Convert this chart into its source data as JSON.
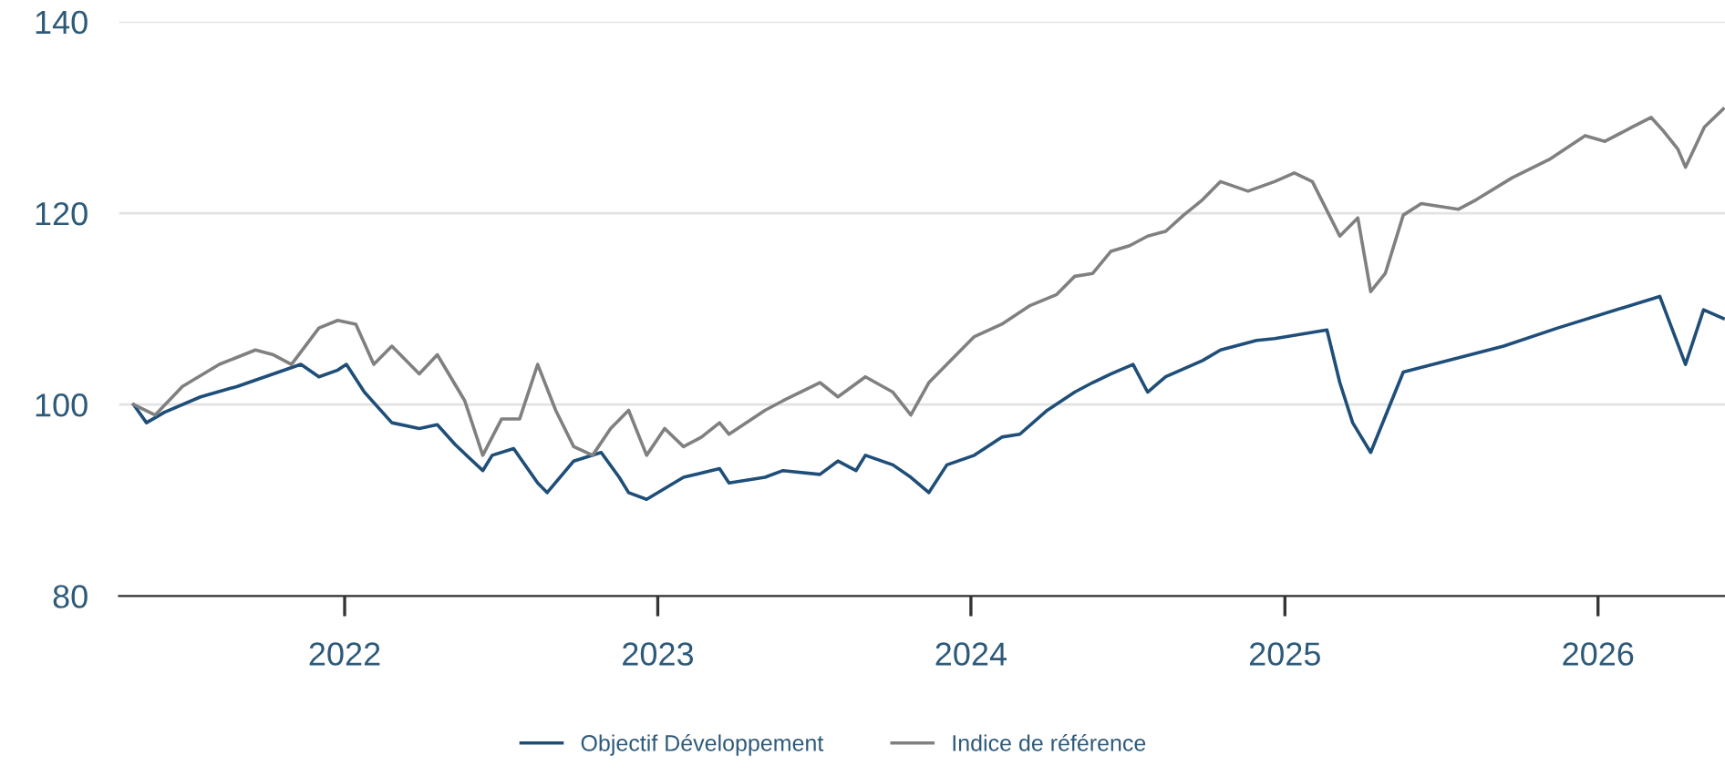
{
  "chart_data": {
    "type": "line",
    "xlim": [
      "2021-04-13",
      "2026-05-29"
    ],
    "xticks": [
      {
        "value": "2022-01-01",
        "label": "2022"
      },
      {
        "value": "2023-01-01",
        "label": "2023"
      },
      {
        "value": "2024-01-01",
        "label": "2024"
      },
      {
        "value": "2025-01-01",
        "label": "2025"
      },
      {
        "value": "2026-01-01",
        "label": "2026"
      }
    ],
    "ylim": [
      80,
      140
    ],
    "yticks": [
      80,
      100,
      120,
      140
    ],
    "grid": "y",
    "legend": "bottom",
    "line_style": "solid",
    "marker": "none",
    "series": [
      {
        "name": "Objectif Développement",
        "color": "#1f4e79",
        "x": [
          "2021-04-30",
          "2021-05-15",
          "2021-06-05",
          "2021-07-17",
          "2021-08-29",
          "2021-10-10",
          "2021-11-11",
          "2021-12-02",
          "2021-12-24",
          "2022-01-03",
          "2022-01-24",
          "2022-02-25",
          "2022-03-29",
          "2022-04-19",
          "2022-05-10",
          "2022-06-11",
          "2022-06-22",
          "2022-07-17",
          "2022-08-14",
          "2022-08-25",
          "2022-09-25",
          "2022-10-27",
          "2022-11-17",
          "2022-11-28",
          "2022-12-19",
          "2023-01-31",
          "2023-03-14",
          "2023-03-25",
          "2023-05-06",
          "2023-05-27",
          "2023-07-09",
          "2023-07-30",
          "2023-08-20",
          "2023-08-31",
          "2023-10-02",
          "2023-10-23",
          "2023-11-13",
          "2023-12-04",
          "2024-01-05",
          "2024-02-06",
          "2024-02-27",
          "2024-03-30",
          "2024-05-01",
          "2024-05-22",
          "2024-06-12",
          "2024-07-08",
          "2024-07-25",
          "2024-08-15",
          "2024-09-27",
          "2024-10-18",
          "2024-11-29",
          "2024-12-20",
          "2025-02-19",
          "2025-03-06",
          "2025-03-21",
          "2025-04-11",
          "2025-05-19",
          "2025-09-13",
          "2025-11-15",
          "2026-03-14",
          "2026-04-13",
          "2026-05-04",
          "2026-05-27"
        ],
        "values": [
          100,
          98.1,
          99.2,
          100.8,
          101.9,
          103.2,
          104.2,
          102.9,
          103.6,
          104.2,
          101.3,
          98.1,
          97.5,
          97.9,
          95.8,
          93.1,
          94.7,
          95.4,
          91.8,
          90.8,
          94.1,
          95.0,
          92.4,
          90.8,
          90.1,
          92.4,
          93.3,
          91.8,
          92.4,
          93.1,
          92.7,
          94.1,
          93.1,
          94.7,
          93.7,
          92.4,
          90.8,
          93.7,
          94.7,
          96.6,
          96.9,
          99.4,
          101.3,
          102.3,
          103.2,
          104.2,
          101.3,
          102.9,
          104.6,
          105.7,
          106.7,
          106.9,
          107.8,
          102.3,
          98.1,
          95.0,
          103.4,
          106.1,
          108.0,
          111.3,
          104.2,
          109.9,
          109.0
        ]
      },
      {
        "name": "Indice de référence",
        "color": "#808080",
        "x": [
          "2021-04-30",
          "2021-05-25",
          "2021-06-26",
          "2021-08-08",
          "2021-09-19",
          "2021-10-10",
          "2021-10-31",
          "2021-12-02",
          "2021-12-24",
          "2022-01-14",
          "2022-02-04",
          "2022-02-25",
          "2022-03-29",
          "2022-04-19",
          "2022-05-21",
          "2022-06-11",
          "2022-07-03",
          "2022-07-24",
          "2022-08-14",
          "2022-09-04",
          "2022-09-25",
          "2022-10-17",
          "2022-11-07",
          "2022-11-28",
          "2022-12-19",
          "2023-01-09",
          "2023-01-31",
          "2023-02-21",
          "2023-03-14",
          "2023-03-25",
          "2023-05-06",
          "2023-05-27",
          "2023-07-09",
          "2023-07-30",
          "2023-08-31",
          "2023-10-02",
          "2023-10-23",
          "2023-11-13",
          "2023-12-15",
          "2024-01-05",
          "2024-02-06",
          "2024-03-09",
          "2024-04-10",
          "2024-05-01",
          "2024-05-22",
          "2024-06-12",
          "2024-07-04",
          "2024-07-25",
          "2024-08-15",
          "2024-09-05",
          "2024-09-27",
          "2024-10-18",
          "2024-11-19",
          "2024-12-20",
          "2025-01-12",
          "2025-02-02",
          "2025-03-06",
          "2025-03-27",
          "2025-04-11",
          "2025-04-28",
          "2025-05-19",
          "2025-06-09",
          "2025-07-22",
          "2025-08-12",
          "2025-09-23",
          "2025-11-05",
          "2025-12-17",
          "2026-01-09",
          "2026-02-10",
          "2026-03-04",
          "2026-03-18",
          "2026-04-04",
          "2026-04-13",
          "2026-05-05",
          "2026-05-27"
        ],
        "values": [
          100,
          98.9,
          101.9,
          104.2,
          105.7,
          105.2,
          104.2,
          108.0,
          108.8,
          108.4,
          104.2,
          106.1,
          103.2,
          105.2,
          100.4,
          94.7,
          98.5,
          98.5,
          104.2,
          99.4,
          95.6,
          94.7,
          97.5,
          99.4,
          94.7,
          97.5,
          95.6,
          96.6,
          98.1,
          96.9,
          99.4,
          100.4,
          102.3,
          100.8,
          102.9,
          101.3,
          98.9,
          102.3,
          105.2,
          107.1,
          108.4,
          110.3,
          111.5,
          113.4,
          113.7,
          116.0,
          116.6,
          117.6,
          118.1,
          119.8,
          121.4,
          123.3,
          122.3,
          123.3,
          124.2,
          123.3,
          117.6,
          119.5,
          111.8,
          113.7,
          119.8,
          121.0,
          120.4,
          121.4,
          123.7,
          125.6,
          128.1,
          127.5,
          129.0,
          130.0,
          128.6,
          126.7,
          124.8,
          129.0,
          130.9
        ]
      }
    ]
  }
}
